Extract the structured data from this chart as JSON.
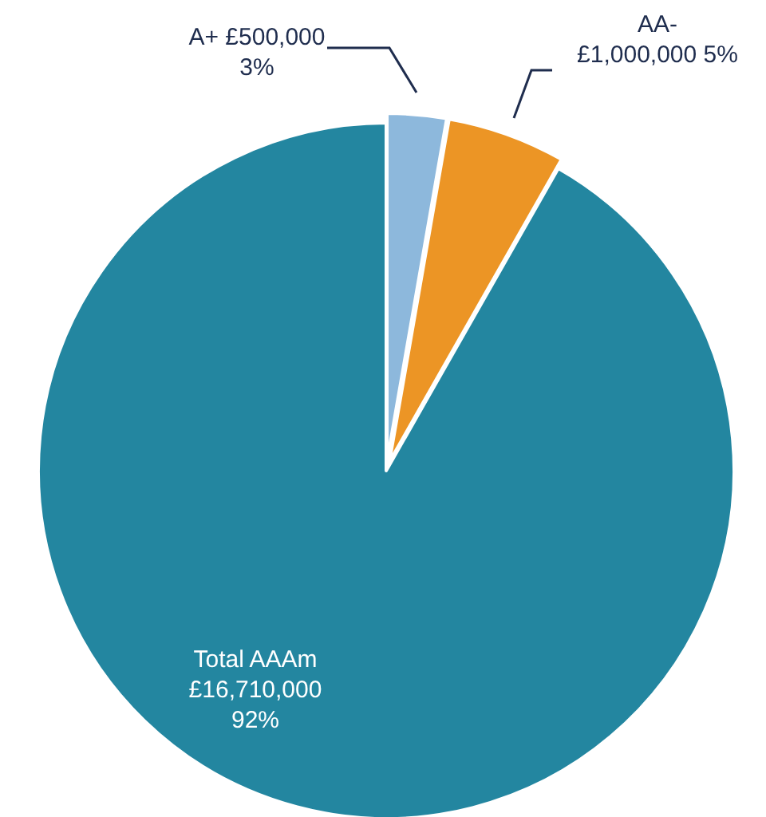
{
  "chart_data": {
    "type": "pie",
    "categories": [
      "A+",
      "AA-",
      "Total AAAm"
    ],
    "values": [
      500000,
      1000000,
      16710000
    ],
    "colors": [
      "#8db8dc",
      "#ec9525",
      "#2386a0"
    ],
    "value_labels": [
      "£500,000\n3%",
      "£1,000,000 5%",
      "£16,710,000\n92%"
    ],
    "legend": false
  }
}
